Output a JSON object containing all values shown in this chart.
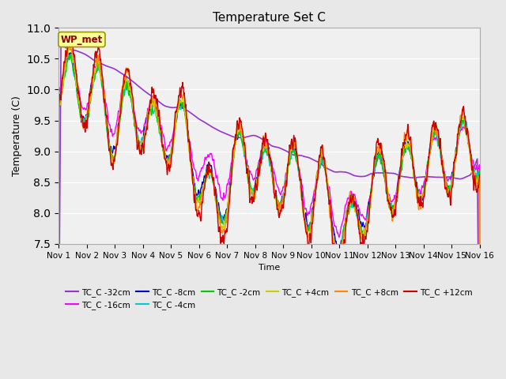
{
  "title": "Temperature Set C",
  "xlabel": "Time",
  "ylabel": "Temperature (C)",
  "ylim": [
    7.5,
    11.0
  ],
  "n_days": 15,
  "x_tick_labels": [
    "Nov 1",
    "Nov 2",
    "Nov 3",
    "Nov 4",
    "Nov 5",
    "Nov 6",
    "Nov 7",
    "Nov 8",
    "Nov 9",
    "Nov 10",
    "Nov 11",
    "Nov 12",
    "Nov 13",
    "Nov 14",
    "Nov 15",
    "Nov 16"
  ],
  "annotation_text": "WP_met",
  "annotation_color": "#8B0000",
  "annotation_bg": "#FFFF99",
  "series": [
    {
      "label": "TC_C -32cm",
      "color": "#9933CC"
    },
    {
      "label": "TC_C -16cm",
      "color": "#FF00FF"
    },
    {
      "label": "TC_C -8cm",
      "color": "#0000CC"
    },
    {
      "label": "TC_C -4cm",
      "color": "#00CCCC"
    },
    {
      "label": "TC_C -2cm",
      "color": "#00CC00"
    },
    {
      "label": "TC_C +4cm",
      "color": "#CCCC00"
    },
    {
      "label": "TC_C +8cm",
      "color": "#FF8800"
    },
    {
      "label": "TC_C +12cm",
      "color": "#CC0000"
    }
  ],
  "bg_color": "#E8E8E8",
  "plot_bg": "#F0F0F0"
}
